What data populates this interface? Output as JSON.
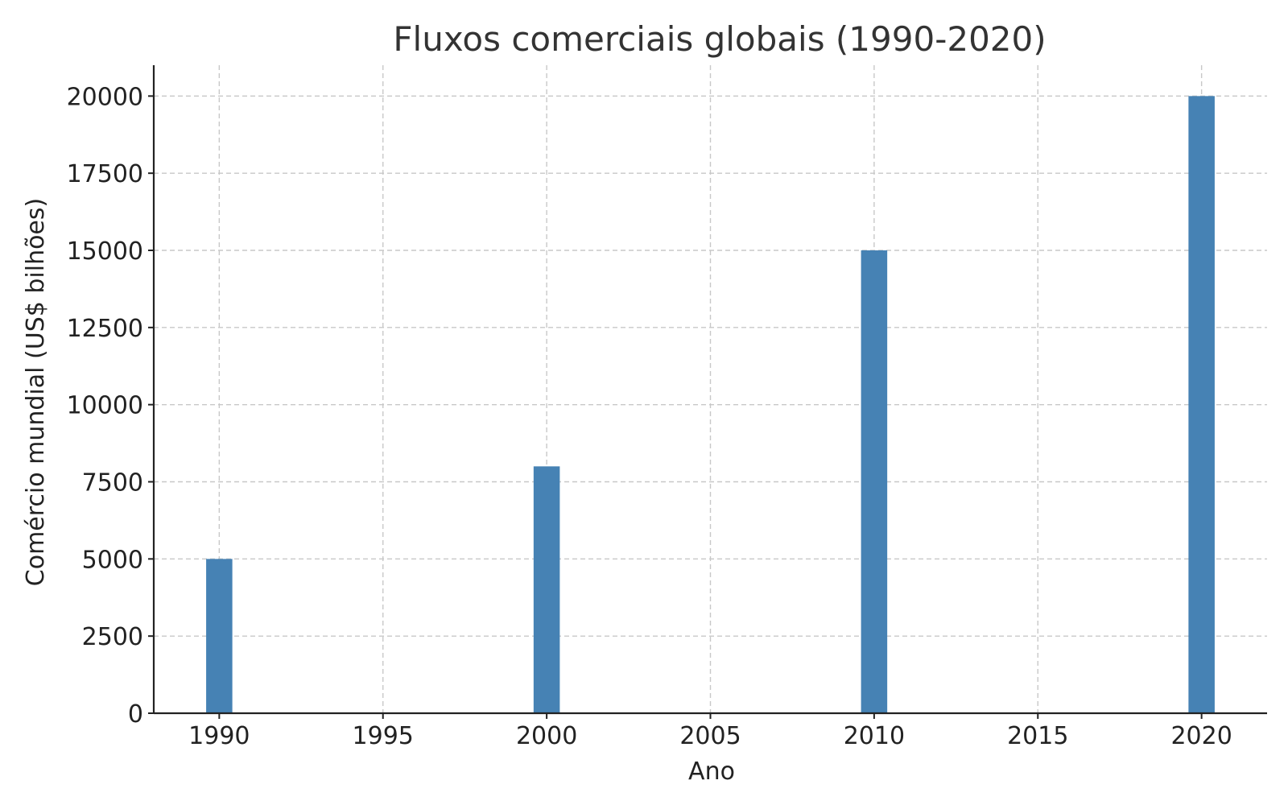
{
  "chart_data": {
    "type": "bar",
    "title": "Fluxos comerciais globais (1990-2020)",
    "xlabel": "Ano",
    "ylabel": "Comércio mundial (US$ bilhões)",
    "x": [
      1990,
      2000,
      2010,
      2020
    ],
    "values": [
      5000,
      8000,
      15000,
      20000
    ],
    "xlim": [
      1988,
      2022
    ],
    "ylim": [
      0,
      21000
    ],
    "xticks": [
      1990,
      1995,
      2000,
      2005,
      2010,
      2015,
      2020
    ],
    "yticks": [
      0,
      2500,
      5000,
      7500,
      10000,
      12500,
      15000,
      17500,
      20000
    ],
    "bar_width": 0.8,
    "bar_color": "#4682b4",
    "grid": true
  }
}
